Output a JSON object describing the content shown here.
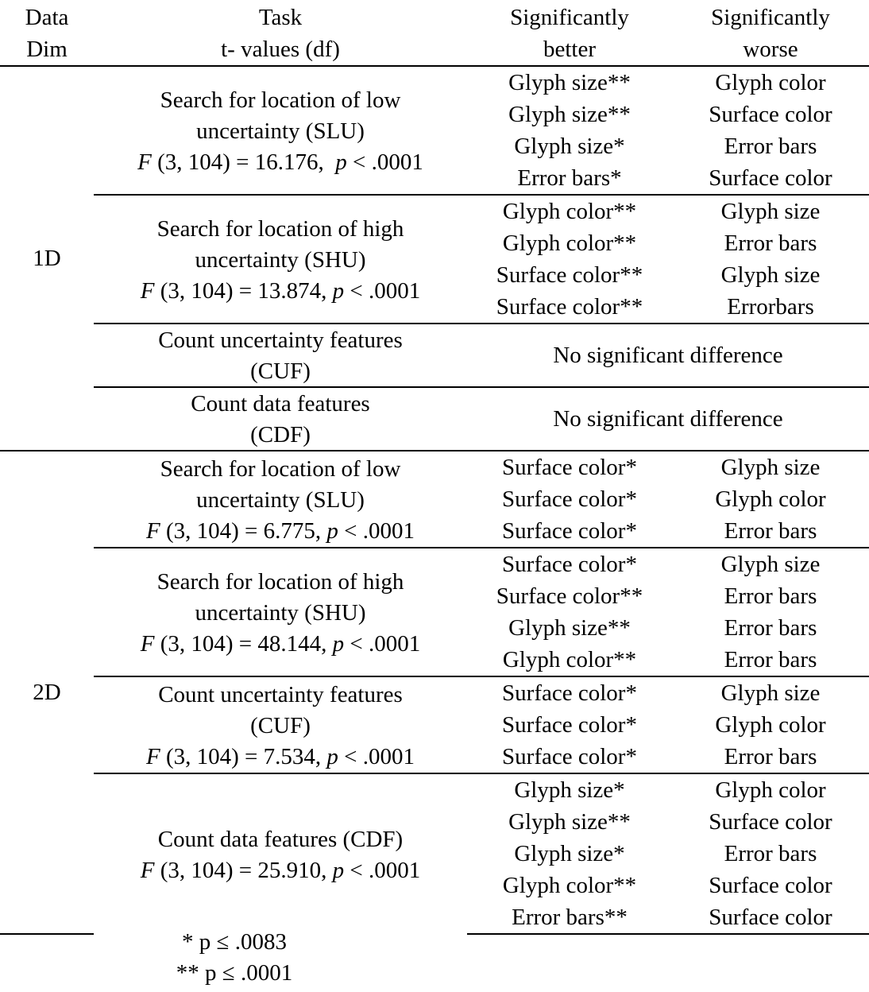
{
  "header": {
    "dim_line1": "Data",
    "dim_line2": "Dim",
    "task_line1": "Task",
    "task_line2": "t- values (df)",
    "better_line1": "Significantly",
    "better_line2": "better",
    "worse_line1": "Significantly",
    "worse_line2": "worse"
  },
  "groups": [
    {
      "dim": "1D",
      "tasks": [
        {
          "title_lines": [
            "Search for location of low",
            "uncertainty (SLU)"
          ],
          "stat": {
            "f": "F",
            "df": " (3, 104) = 16.176,  ",
            "p": "p",
            "pv": " < .0001"
          },
          "pairs": [
            {
              "better": "Glyph size**",
              "worse": "Glyph color"
            },
            {
              "better": "Glyph size**",
              "worse": "Surface color"
            },
            {
              "better": "Glyph size*",
              "worse": "Error bars"
            },
            {
              "better": "Error bars*",
              "worse": "Surface color"
            }
          ]
        },
        {
          "title_lines": [
            "Search for location of high",
            "uncertainty (SHU)"
          ],
          "stat": {
            "f": "F",
            "df": " (3, 104) = 13.874, ",
            "p": "p",
            "pv": " < .0001"
          },
          "pairs": [
            {
              "better": "Glyph color**",
              "worse": "Glyph size"
            },
            {
              "better": "Glyph color**",
              "worse": "Error bars"
            },
            {
              "better": "Surface color**",
              "worse": "Glyph size"
            },
            {
              "better": "Surface color**",
              "worse": "Errorbars"
            }
          ]
        },
        {
          "title_lines": [
            "Count uncertainty features",
            "(CUF)"
          ],
          "nsd": "No significant difference"
        },
        {
          "title_lines": [
            "Count data features",
            "(CDF)"
          ],
          "nsd": "No significant difference"
        }
      ]
    },
    {
      "dim": "2D",
      "tasks": [
        {
          "title_lines": [
            "Search for location of low",
            "uncertainty (SLU)"
          ],
          "stat": {
            "f": "F",
            "df": " (3, 104) = 6.775, ",
            "p": "p",
            "pv": " < .0001"
          },
          "pairs": [
            {
              "better": "Surface color*",
              "worse": "Glyph size"
            },
            {
              "better": "Surface color*",
              "worse": "Glyph color"
            },
            {
              "better": "Surface color*",
              "worse": "Error bars"
            }
          ]
        },
        {
          "title_lines": [
            "Search for location of high",
            "uncertainty (SHU)"
          ],
          "stat": {
            "f": "F",
            "df": " (3, 104) = 48.144, ",
            "p": "p",
            "pv": " < .0001"
          },
          "pairs": [
            {
              "better": "Surface color*",
              "worse": "Glyph size"
            },
            {
              "better": "Surface color**",
              "worse": "Error bars"
            },
            {
              "better": "Glyph size**",
              "worse": "Error bars"
            },
            {
              "better": "Glyph color**",
              "worse": "Error bars"
            }
          ]
        },
        {
          "title_lines": [
            "Count uncertainty features",
            "(CUF)"
          ],
          "stat": {
            "f": "F",
            "df": " (3, 104) = 7.534, ",
            "p": "p",
            "pv": " < .0001"
          },
          "pairs": [
            {
              "better": "Surface color*",
              "worse": "Glyph size"
            },
            {
              "better": "Surface color*",
              "worse": "Glyph color"
            },
            {
              "better": "Surface color*",
              "worse": "Error bars"
            }
          ]
        },
        {
          "title_lines": [
            "Count data features (CDF)"
          ],
          "stat": {
            "f": "F",
            "df": " (3, 104) = 25.910, ",
            "p": "p",
            "pv": " < .0001"
          },
          "pairs": [
            {
              "better": "Glyph size*",
              "worse": "Glyph color"
            },
            {
              "better": "Glyph size**",
              "worse": "Surface color"
            },
            {
              "better": "Glyph size*",
              "worse": "Error bars"
            },
            {
              "better": "Glyph color**",
              "worse": "Surface color"
            },
            {
              "better": "Error bars**",
              "worse": "Surface color"
            }
          ]
        }
      ]
    }
  ],
  "notes": [
    "* p ≤ .0083",
    "** p ≤ .0001"
  ]
}
